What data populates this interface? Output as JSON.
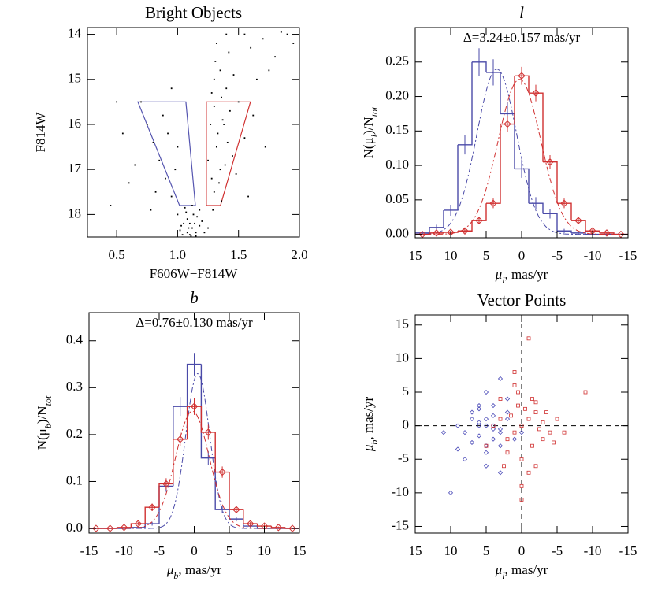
{
  "chart_data": [
    {
      "type": "scatter",
      "title": "Bright Objects",
      "xlabel": "F606W−F814W",
      "ylabel": "F814W",
      "xlim": [
        0.26,
        2.0
      ],
      "ylim": [
        18.5,
        13.85
      ],
      "xticks": [
        0.5,
        {
          "value": 1,
          "label": "1.0"
        },
        1.5,
        {
          "value": 2,
          "label": "2.0"
        }
      ],
      "yticks": [
        14,
        15,
        16,
        17,
        18
      ],
      "series": [
        {
          "color": "#000000",
          "marker": "dot",
          "x": [
            1.1,
            1.12,
            1.05,
            1.15,
            1.08,
            1.18,
            1.02,
            1.13,
            1.07,
            1.2,
            1.11,
            1.16,
            1.04,
            1.09,
            1.14,
            1.0,
            1.22,
            1.06,
            1.12,
            1.18,
            1.03,
            1.15,
            1.1,
            1.08,
            1.25,
            0.95,
            0.9,
            0.85,
            0.8,
            0.75,
            0.98,
            0.88,
            0.7,
            0.92,
            1.0,
            0.82,
            0.65,
            0.95,
            0.78,
            0.6,
            1.3,
            1.35,
            1.32,
            1.38,
            1.3,
            1.4,
            1.35,
            1.42,
            1.28,
            1.45,
            1.33,
            1.37,
            1.3,
            1.5,
            1.25,
            1.36,
            1.4,
            1.32,
            1.46,
            1.28,
            1.55,
            1.34,
            1.39,
            1.27,
            1.43,
            1.31,
            1.48,
            1.36,
            1.29,
            1.41,
            1.6,
            1.7,
            1.8,
            1.65,
            1.9,
            1.75,
            1.85,
            1.62,
            1.95,
            1.55,
            0.55,
            0.5,
            1.72,
            1.58,
            0.45
          ],
          "y": [
            18.45,
            18.3,
            18.2,
            18.4,
            18.1,
            18.25,
            18.35,
            18.0,
            17.95,
            18.15,
            18.48,
            18.05,
            18.45,
            18.3,
            18.2,
            18.0,
            18.4,
            17.85,
            17.8,
            17.9,
            18.25,
            18.48,
            18.2,
            18.4,
            18.3,
            17.6,
            17.2,
            16.8,
            16.4,
            16.0,
            17.0,
            15.8,
            15.5,
            16.2,
            16.5,
            17.5,
            16.9,
            15.2,
            17.9,
            17.3,
            17.5,
            17.0,
            16.5,
            16.0,
            15.6,
            15.2,
            14.8,
            14.4,
            17.2,
            16.7,
            16.2,
            15.9,
            15.0,
            15.5,
            16.8,
            17.7,
            14.0,
            14.2,
            14.9,
            15.3,
            16.3,
            17.3,
            16.9,
            16.0,
            15.7,
            14.6,
            17.1,
            15.4,
            17.9,
            16.4,
            14.3,
            14.1,
            14.5,
            15.0,
            14.0,
            14.8,
            13.95,
            15.8,
            14.2,
            14.0,
            16.2,
            15.5,
            16.5,
            17.6,
            17.8
          ]
        }
      ],
      "regions": [
        {
          "color": "#5555b0",
          "x": [
            0.674,
            1.068,
            1.146,
            1.016
          ],
          "y": [
            15.5,
            15.5,
            17.8,
            17.8
          ]
        },
        {
          "color": "#d03030",
          "x": [
            1.236,
            1.598,
            1.352,
            1.236
          ],
          "y": [
            15.5,
            15.5,
            17.8,
            17.8
          ]
        }
      ]
    },
    {
      "type": "histogram",
      "title": "l",
      "annotation": "Δ=3.24±0.157 mas/yr",
      "xlabel": [
        "μ",
        "l",
        ", mas/yr"
      ],
      "ylabel": [
        "N(μ",
        "l",
        ")/N",
        "tot"
      ],
      "xlim": [
        15,
        -15
      ],
      "ylim": [
        -0.005,
        0.3
      ],
      "xticks": [
        15,
        10,
        5,
        0,
        -5,
        -10,
        -15
      ],
      "yticks": [
        {
          "value": 0,
          "label": "0.00"
        },
        {
          "value": 0.05,
          "label": "0.05"
        },
        {
          "value": 0.1,
          "label": "0.10"
        },
        {
          "value": 0.15,
          "label": "0.15"
        },
        {
          "value": 0.2,
          "label": "0.20"
        },
        {
          "value": 0.25,
          "label": "0.25"
        }
      ],
      "bins": [
        -15,
        -13,
        -11,
        -9,
        -7,
        -5,
        -3,
        -1,
        1,
        3,
        5,
        7,
        9,
        11,
        13,
        15
      ],
      "series": [
        {
          "color": "#4a4aa8",
          "marker": "none",
          "values": [
            0,
            0,
            0,
            0.002,
            0.005,
            0.03,
            0.045,
            0.095,
            0.175,
            0.235,
            0.25,
            0.13,
            0.035,
            0.01,
            0.002
          ],
          "errors": [
            0.001,
            0.001,
            0.001,
            0.002,
            0.003,
            0.007,
            0.009,
            0.013,
            0.017,
            0.019,
            0.02,
            0.014,
            0.008,
            0.004,
            0.002
          ],
          "fit": {
            "amp": 0.24,
            "mean": 3.5,
            "sigma": 2.8
          }
        },
        {
          "color": "#d03030",
          "marker": "diamond",
          "values": [
            0,
            0.002,
            0.005,
            0.02,
            0.045,
            0.105,
            0.205,
            0.23,
            0.16,
            0.045,
            0.02,
            0.005,
            0.003,
            0.002,
            0
          ],
          "errors": [
            0.001,
            0.002,
            0.003,
            0.005,
            0.007,
            0.01,
            0.012,
            0.013,
            0.012,
            0.007,
            0.005,
            0.003,
            0.002,
            0.002,
            0.001
          ],
          "fit": {
            "amp": 0.225,
            "mean": 0.3,
            "sigma": 3.0
          }
        }
      ]
    },
    {
      "type": "histogram",
      "title": "b",
      "annotation": "Δ=0.76±0.130 mas/yr",
      "xlabel": [
        "μ",
        "b",
        ", mas/yr"
      ],
      "ylabel": [
        "N(μ",
        "b",
        ")/N",
        "tot"
      ],
      "xlim": [
        -15,
        15
      ],
      "ylim": [
        -0.01,
        0.46
      ],
      "xticks": [
        -15,
        -10,
        -5,
        0,
        5,
        10,
        15
      ],
      "yticks": [
        {
          "value": 0,
          "label": "0.0"
        },
        0.1,
        0.2,
        0.3,
        0.4
      ],
      "bins": [
        -15,
        -13,
        -11,
        -9,
        -7,
        -5,
        -3,
        -1,
        1,
        3,
        5,
        7,
        9,
        11,
        13,
        15
      ],
      "series": [
        {
          "color": "#4a4aa8",
          "marker": "none",
          "values": [
            0,
            0,
            0,
            0.002,
            0.01,
            0.09,
            0.26,
            0.35,
            0.15,
            0.04,
            0.02,
            0.005,
            0,
            0,
            0
          ],
          "errors": [
            0.001,
            0.001,
            0.001,
            0.002,
            0.004,
            0.012,
            0.02,
            0.024,
            0.015,
            0.008,
            0.005,
            0.003,
            0.001,
            0.001,
            0.001
          ],
          "fit": {
            "amp": 0.33,
            "mean": 0.5,
            "sigma": 1.7
          }
        },
        {
          "color": "#d03030",
          "marker": "diamond",
          "values": [
            0,
            0,
            0.002,
            0.01,
            0.045,
            0.095,
            0.19,
            0.26,
            0.205,
            0.12,
            0.04,
            0.01,
            0.005,
            0.002,
            0
          ],
          "errors": [
            0.001,
            0.001,
            0.002,
            0.004,
            0.008,
            0.012,
            0.015,
            0.018,
            0.016,
            0.012,
            0.007,
            0.004,
            0.003,
            0.002,
            0.001
          ],
          "fit": {
            "amp": 0.25,
            "mean": -0.26,
            "sigma": 2.4
          }
        }
      ]
    },
    {
      "type": "scatter",
      "title": "Vector Points",
      "zero_lines": true,
      "xlabel": [
        "μ",
        "l",
        ", mas/yr"
      ],
      "ylabel": [
        "μ",
        "b",
        ", mas/yr"
      ],
      "xlim": [
        15,
        -15
      ],
      "ylim": [
        -16,
        16.5
      ],
      "xticks": [
        15,
        10,
        5,
        0,
        -5,
        -10,
        -15
      ],
      "yticks": [
        -15,
        -10,
        -5,
        0,
        5,
        10,
        15
      ],
      "series": [
        {
          "color": "#4a4ab8",
          "marker": "diamond",
          "x": [
            5,
            3,
            7,
            4,
            6,
            2,
            8,
            5,
            4,
            3,
            9,
            6,
            1,
            5,
            7,
            4,
            2,
            6,
            3,
            10,
            5,
            8,
            4,
            0,
            6,
            3,
            11,
            5,
            7,
            2,
            4,
            6,
            9,
            3,
            5
          ],
          "y": [
            0,
            -1,
            1,
            -2,
            0.5,
            2,
            -1,
            -3,
            1.5,
            -0.5,
            0,
            3,
            -2,
            -4,
            2,
            0,
            1,
            -1.5,
            -3,
            -10,
            5,
            -5,
            3,
            -1,
            0,
            7,
            -1,
            -6,
            -2.5,
            4,
            -0.5,
            2.5,
            -3.5,
            -7,
            1
          ]
        },
        {
          "color": "#d03030",
          "marker": "square",
          "x": [
            0,
            -1,
            1,
            -2,
            2,
            -3,
            0.5,
            -1.5,
            1.5,
            -4,
            3,
            -2.5,
            0,
            -0.5,
            2,
            -5,
            -3,
            1,
            -1,
            4,
            -6,
            0,
            -2,
            2.5,
            -1,
            -3.5,
            0.5,
            -9,
            5,
            -2,
            1,
            -4.5,
            0,
            -1.5,
            3
          ],
          "y": [
            0,
            1,
            -1,
            2,
            -2,
            0.5,
            3,
            -3,
            1.5,
            -1,
            4,
            -0.5,
            -5,
            2.5,
            -4,
            1,
            -2,
            6,
            13,
            0,
            -1,
            -9,
            3.5,
            -6,
            -7,
            2,
            5,
            5,
            -3,
            -6,
            8,
            -2.5,
            -11,
            4,
            1
          ]
        }
      ]
    }
  ]
}
